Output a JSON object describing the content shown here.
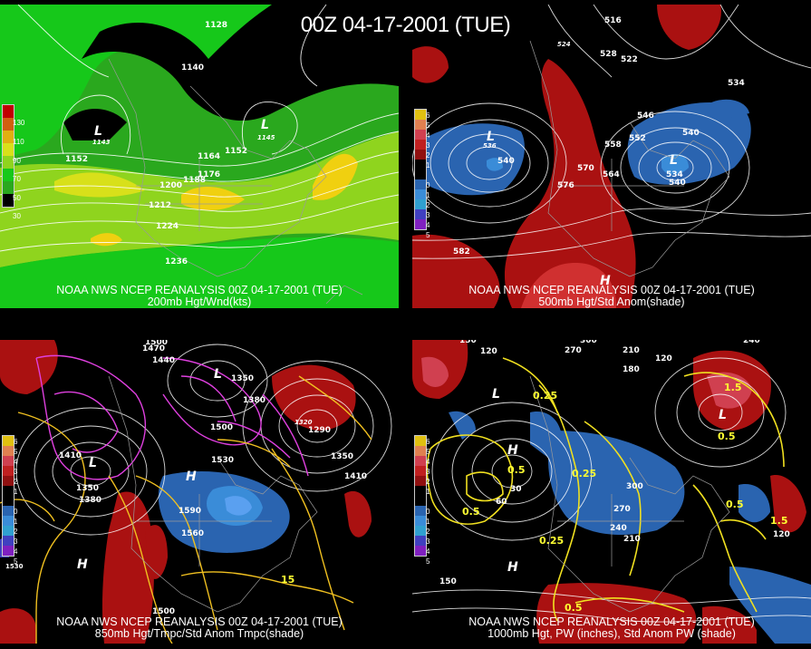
{
  "title": "00Z 04-17-2001 (TUE)",
  "panels": [
    {
      "caption1": "NOAA NWS NCEP REANALYSIS 00Z 04-17-2001 (TUE)",
      "caption2": "200mb Hgt/Wnd(kts)",
      "legend": [
        "130",
        "110",
        "90",
        "70",
        "50",
        "30"
      ],
      "labels": [
        "1128",
        "1140",
        "1143",
        "1145",
        "1152",
        "1164",
        "1152",
        "1176",
        "1188",
        "1200",
        "1212",
        "1224",
        "1236",
        "L",
        "L"
      ]
    },
    {
      "caption1": "NOAA NWS NCEP REANALYSIS 00Z 04-17-2001 (TUE)",
      "caption2": "500mb Hgt/Std Anom(shade)",
      "legend": [
        "6",
        "5",
        "4",
        "3",
        "2",
        "1",
        "0",
        "1",
        "2",
        "3",
        "4",
        "5"
      ],
      "labels": [
        "516",
        "524",
        "528",
        "522",
        "534",
        "546",
        "540",
        "552",
        "558",
        "570",
        "564",
        "576",
        "540",
        "534",
        "540",
        "536",
        "582",
        "L",
        "L",
        "H"
      ]
    },
    {
      "caption1": "NOAA NWS NCEP REANALYSIS 00Z 04-17-2001 (TUE)",
      "caption2": "850mb Hgt/Tmpc/Std Anom Tmpc(shade)",
      "legend": [
        "6",
        "5",
        "4",
        "3",
        "2",
        "1",
        "0",
        "1",
        "2",
        "3",
        "4",
        "5"
      ],
      "labels": [
        "1500",
        "1470",
        "1440",
        "1350",
        "1380",
        "1410",
        "1350",
        "1380",
        "1500",
        "1530",
        "1560",
        "1590",
        "1320",
        "1290",
        "1350",
        "1410",
        "1530",
        "1500",
        "15",
        "L",
        "L",
        "H",
        "H"
      ]
    },
    {
      "caption1": "NOAA NWS NCEP REANALYSIS 00Z 04-17-2001 (TUE)",
      "caption2": "1000mb Hgt, PW (inches), Std Anom PW (shade)",
      "legend": [
        "6",
        "5",
        "4",
        "3",
        "2",
        "1",
        "0",
        "1",
        "2",
        "3",
        "4",
        "5"
      ],
      "labels": [
        "150",
        "120",
        "300",
        "270",
        "210",
        "180",
        "120",
        "240",
        "0.25",
        "0.5",
        "1.5",
        "0.5",
        "30",
        "60",
        "0.25",
        "300",
        "270",
        "240",
        "210",
        "0.25",
        "0.5",
        "0.5",
        "1.5",
        "120",
        "150",
        "0.5",
        "L",
        "L",
        "H",
        "H"
      ]
    }
  ]
}
